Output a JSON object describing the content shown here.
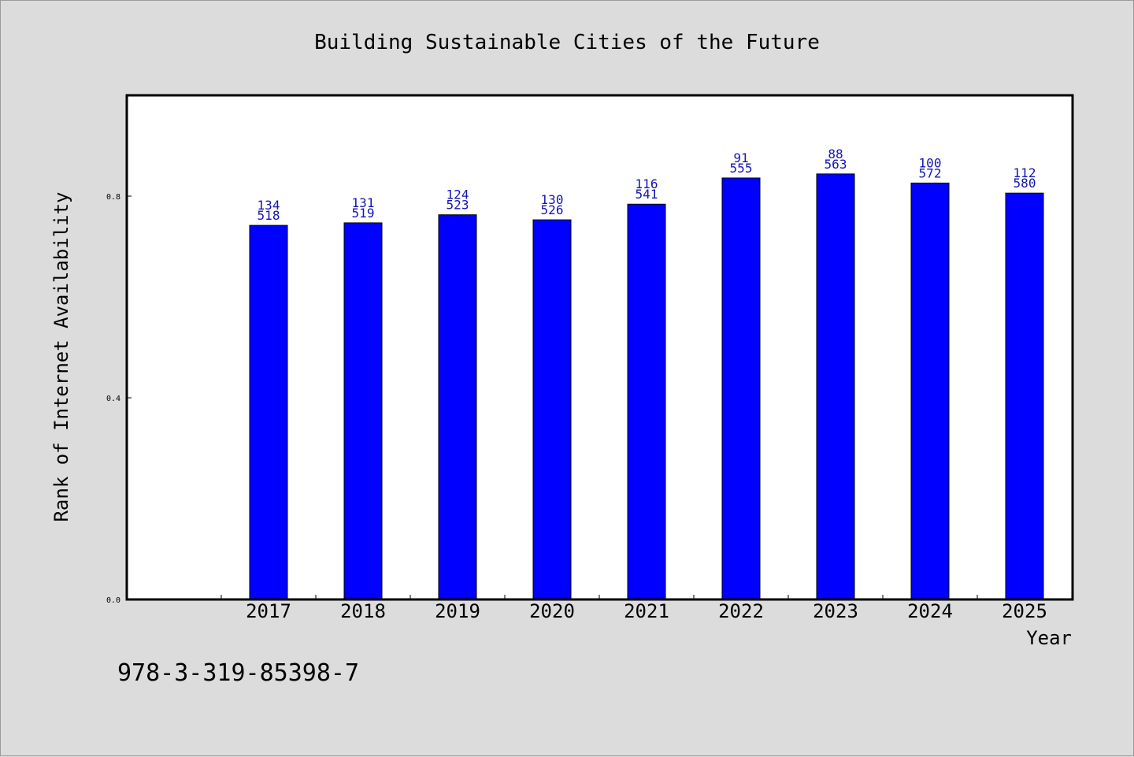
{
  "isbn": "978-3-319-85398-7",
  "colors": {
    "bar": "#0000ff",
    "label": "#1414b4",
    "background": "#dcdcdc",
    "plot_area": "#ffffff"
  },
  "chart_data": {
    "type": "bar",
    "title": "Building Sustainable Cities of the Future",
    "xlabel": "Year",
    "ylabel": "Rank of Internet Availability",
    "categories": [
      "2017",
      "2018",
      "2019",
      "2020",
      "2021",
      "2022",
      "2023",
      "2024",
      "2025"
    ],
    "values": [
      0.742,
      0.747,
      0.763,
      0.753,
      0.784,
      0.836,
      0.844,
      0.826,
      0.806
    ],
    "labels_top": [
      "134",
      "131",
      "124",
      "130",
      "116",
      "91",
      "88",
      "100",
      "112"
    ],
    "labels_bottom": [
      "518",
      "519",
      "523",
      "526",
      "541",
      "555",
      "563",
      "572",
      "580"
    ],
    "yticks": [
      0.0,
      0.4,
      0.8
    ],
    "ytick_labels": [
      "0.0",
      "0.4",
      "0.8"
    ],
    "ylim": [
      0,
      1.0
    ],
    "grid": false,
    "legend": "none"
  }
}
